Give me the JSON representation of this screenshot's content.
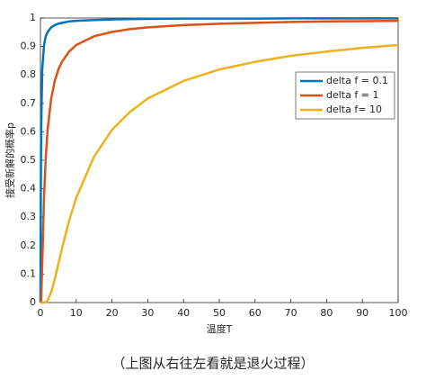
{
  "chart_data": {
    "type": "line",
    "xlabel": "温度T",
    "ylabel": "接受新解的概率p",
    "caption": "（上图从右往左看就是退火过程）",
    "x": [
      0,
      0.1,
      0.2,
      0.5,
      1,
      1.5,
      2,
      3,
      4,
      5,
      6,
      8,
      10,
      15,
      20,
      25,
      30,
      40,
      50,
      60,
      70,
      80,
      90,
      100
    ],
    "series": [
      {
        "name": "delta f = 0.1",
        "color": "#0072bd",
        "values": [
          0,
          0.368,
          0.607,
          0.819,
          0.905,
          0.936,
          0.951,
          0.967,
          0.975,
          0.98,
          0.983,
          0.988,
          0.99,
          0.993,
          0.995,
          0.996,
          0.997,
          0.998,
          0.998,
          0.998,
          0.999,
          0.999,
          0.999,
          0.999
        ]
      },
      {
        "name": "delta f = 1",
        "color": "#d95319",
        "values": [
          0,
          0,
          0.007,
          0.135,
          0.368,
          0.513,
          0.607,
          0.717,
          0.779,
          0.819,
          0.846,
          0.882,
          0.905,
          0.936,
          0.951,
          0.961,
          0.967,
          0.975,
          0.98,
          0.983,
          0.986,
          0.988,
          0.989,
          0.99
        ]
      },
      {
        "name": "delta f= 10",
        "color": "#edb120",
        "values": [
          0,
          0,
          0,
          0,
          0,
          0.0013,
          0.007,
          0.036,
          0.082,
          0.135,
          0.189,
          0.287,
          0.368,
          0.513,
          0.607,
          0.67,
          0.717,
          0.779,
          0.819,
          0.846,
          0.867,
          0.882,
          0.895,
          0.905
        ]
      }
    ],
    "xlim": [
      0,
      100
    ],
    "xticks": [
      0,
      10,
      20,
      30,
      40,
      50,
      60,
      70,
      80,
      90,
      100
    ],
    "ylim": [
      0,
      1
    ],
    "yticks": [
      0,
      0.1,
      0.2,
      0.3,
      0.4,
      0.5,
      0.6,
      0.7,
      0.8,
      0.9,
      1
    ],
    "legend": "upper-right"
  }
}
